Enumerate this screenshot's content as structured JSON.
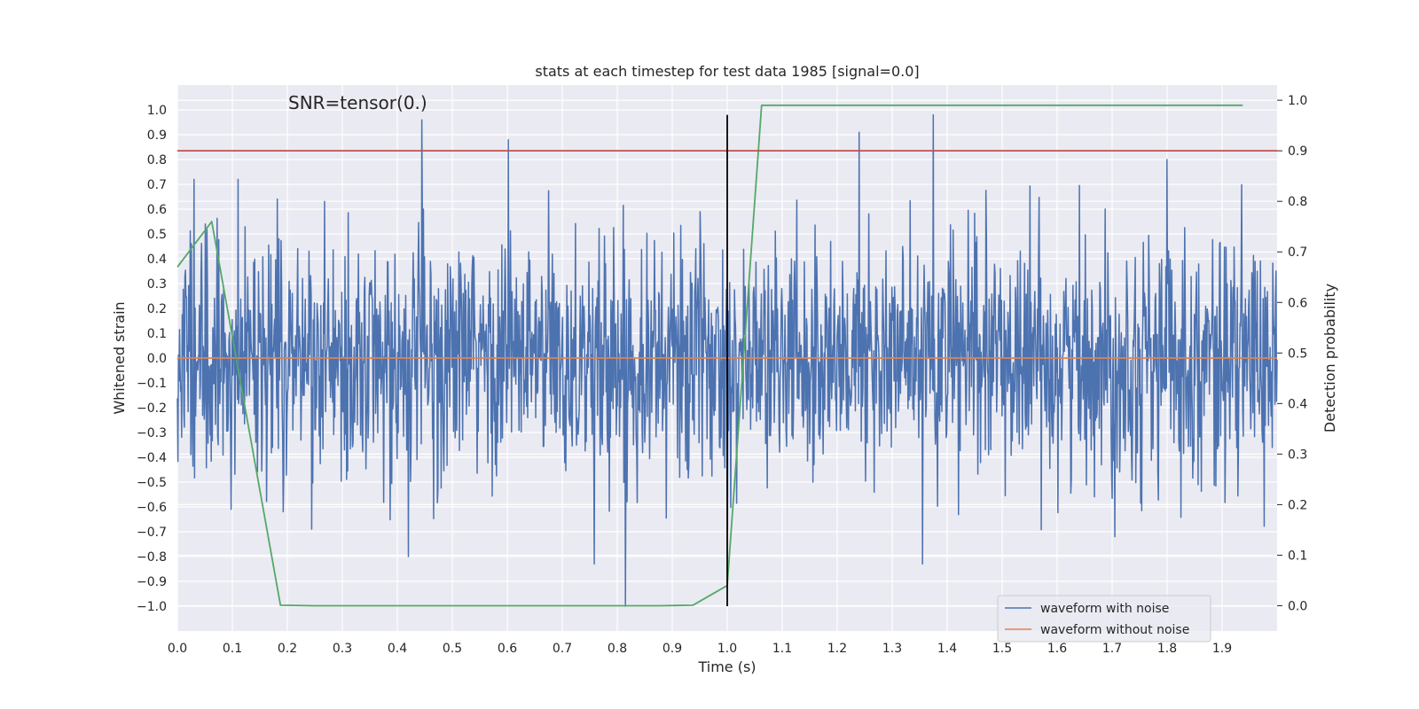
{
  "chart_data": {
    "type": "line",
    "title": "stats at each timestep for test data 1985 [signal=0.0]",
    "xlabel": "Time (s)",
    "ylabel": "Whitened strain",
    "y2label": "Detection probability",
    "xlim": [
      0.0,
      2.0
    ],
    "ylim": [
      -1.1,
      1.1
    ],
    "y2lim": [
      -0.05,
      1.03
    ],
    "xticks": [
      0.0,
      0.1,
      0.2,
      0.3,
      0.4,
      0.5,
      0.6,
      0.7,
      0.8,
      0.9,
      1.0,
      1.1,
      1.2,
      1.3,
      1.4,
      1.5,
      1.6,
      1.7,
      1.8,
      1.9
    ],
    "xtick_labels": [
      "0.0",
      "0.1",
      "0.2",
      "0.3",
      "0.4",
      "0.5",
      "0.6",
      "0.7",
      "0.8",
      "0.9",
      "1.0",
      "1.1",
      "1.2",
      "1.3",
      "1.4",
      "1.5",
      "1.6",
      "1.7",
      "1.8",
      "1.9"
    ],
    "yticks": [
      1.0,
      0.9,
      0.8,
      0.7,
      0.6,
      0.5,
      0.4,
      0.3,
      0.2,
      0.1,
      0.0,
      -0.1,
      -0.2,
      -0.3,
      -0.4,
      -0.5,
      -0.6,
      -0.7,
      -0.8,
      -0.9,
      -1.0
    ],
    "ytick_labels": [
      "1.0",
      "0.9",
      "0.8",
      "0.7",
      "0.6",
      "0.5",
      "0.4",
      "0.3",
      "0.2",
      "0.1",
      "0.0",
      "−0.1",
      "−0.2",
      "−0.3",
      "−0.4",
      "−0.5",
      "−0.6",
      "−0.7",
      "−0.8",
      "−0.9",
      "−1.0"
    ],
    "y2ticks": [
      1.0,
      0.9,
      0.8,
      0.7,
      0.6,
      0.5,
      0.4,
      0.3,
      0.2,
      0.1,
      0.0
    ],
    "y2tick_labels": [
      "1.0",
      "0.9",
      "0.8",
      "0.7",
      "0.6",
      "0.5",
      "0.4",
      "0.3",
      "0.2",
      "0.1",
      "0.0"
    ],
    "annotation": "SNR=tensor(0.)",
    "grid": true,
    "legend_position": "bottom-right",
    "series": [
      {
        "name": "waveform with noise",
        "axis": "left",
        "color": "#4c72b0",
        "kind": "noise",
        "n_samples": 2048,
        "std": 0.24,
        "peaks": [
          [
            0.445,
            0.96
          ],
          [
            0.602,
            0.88
          ],
          [
            0.815,
            -1.0
          ],
          [
            1.24,
            0.91
          ],
          [
            1.375,
            0.98
          ],
          [
            1.8,
            0.8
          ],
          [
            0.42,
            -0.8
          ],
          [
            1.355,
            -0.83
          ],
          [
            0.758,
            -0.83
          ],
          [
            0.098,
            -0.61
          ],
          [
            0.11,
            0.72
          ],
          [
            0.03,
            0.72
          ],
          [
            1.705,
            -0.72
          ]
        ]
      },
      {
        "name": "waveform without noise",
        "axis": "left",
        "color": "#dd8452",
        "x": [
          0.0,
          2.0
        ],
        "y": [
          0.0,
          0.0
        ]
      },
      {
        "name": "detection probability",
        "axis": "right",
        "color": "#55a868",
        "x": [
          0.0,
          0.0625,
          0.1875,
          0.25,
          0.3125,
          0.375,
          0.4375,
          0.5,
          0.5625,
          0.625,
          0.6875,
          0.75,
          0.8125,
          0.875,
          0.9375,
          1.0,
          1.0625,
          1.125,
          1.1875,
          1.25,
          1.3125,
          1.375,
          1.4375,
          1.5,
          1.5625,
          1.625,
          1.6875,
          1.75,
          1.8125,
          1.875,
          1.9375
        ],
        "y": [
          0.67,
          0.76,
          0.001,
          0.0,
          0.0,
          0.0,
          0.0,
          0.0,
          0.0,
          0.0,
          0.0,
          0.0,
          0.0,
          0.0,
          0.001,
          0.04,
          0.99,
          0.99,
          0.99,
          0.99,
          0.99,
          0.99,
          0.99,
          0.99,
          0.99,
          0.99,
          0.99,
          0.99,
          0.99,
          0.99,
          0.99
        ]
      },
      {
        "name": "threshold",
        "axis": "right",
        "color": "#c44e52",
        "x": [
          0.0,
          2.0
        ],
        "y": [
          0.9,
          0.9
        ]
      },
      {
        "name": "event time marker",
        "axis": "left",
        "color": "#000000",
        "x": [
          1.0,
          1.0
        ],
        "y": [
          -1.0,
          0.98
        ]
      }
    ],
    "legend": [
      "waveform with noise",
      "waveform without noise"
    ]
  }
}
